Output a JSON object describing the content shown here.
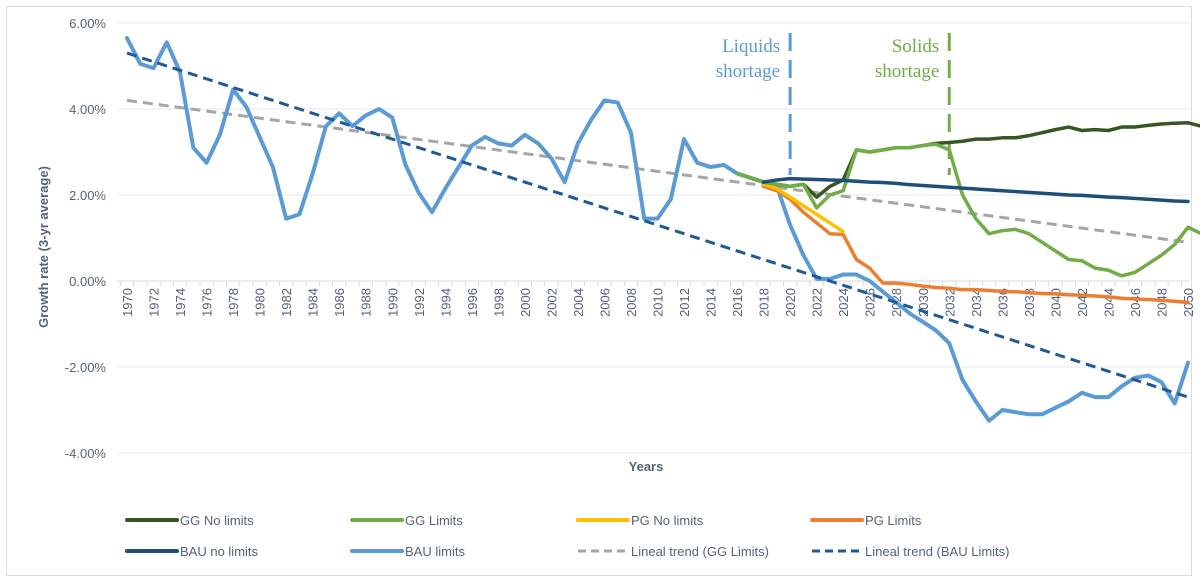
{
  "chart_data": {
    "type": "line",
    "title": "",
    "xlabel": "Years",
    "ylabel": "Growth rate (3-yr average)",
    "ylim": [
      -4,
      6
    ],
    "xlim": [
      1970,
      2050
    ],
    "grid": true,
    "legend_position": "bottom",
    "y_ticks": [
      "6.00%",
      "4.00%",
      "2.00%",
      "0.00%",
      "-2.00%",
      "-4.00%"
    ],
    "y_tick_values": [
      6,
      4,
      2,
      0,
      -2,
      -4
    ],
    "x_tick_step": 2,
    "annotations": [
      {
        "text_lines": [
          "Liquids",
          "shortage"
        ],
        "x": 2020,
        "color": "#5b9bd5"
      },
      {
        "text_lines": [
          "Solids",
          "shortage"
        ],
        "x": 2032,
        "color": "#70ad47"
      }
    ],
    "series": [
      {
        "name": "BAU limits",
        "color": "#5b9bd5",
        "style": "solid",
        "x_start": 1970,
        "values": [
          5.65,
          5.05,
          4.95,
          5.55,
          4.85,
          3.1,
          2.75,
          3.4,
          4.45,
          4.05,
          3.35,
          2.65,
          1.45,
          1.55,
          2.5,
          3.6,
          3.9,
          3.6,
          3.85,
          4.0,
          3.8,
          2.7,
          2.05,
          1.6,
          2.15,
          2.65,
          3.15,
          3.35,
          3.2,
          3.15,
          3.4,
          3.2,
          2.85,
          2.3,
          3.2,
          3.75,
          4.2,
          4.15,
          3.45,
          1.45,
          1.45,
          1.9,
          3.3,
          2.75,
          2.65,
          2.7,
          2.5,
          2.4,
          2.3,
          2.2,
          1.3,
          0.6,
          0.05,
          0.05,
          0.15,
          0.15,
          0.0,
          -0.25,
          -0.5,
          -0.75,
          -0.95,
          -1.15,
          -1.45,
          -2.3,
          -2.8,
          -3.25,
          -3.0,
          -3.05,
          -3.1,
          -3.1,
          -2.95,
          -2.8,
          -2.6,
          -2.7,
          -2.7,
          -2.45,
          -2.25,
          -2.2,
          -2.35,
          -2.85,
          -1.9
        ]
      },
      {
        "name": "BAU no limits",
        "color": "#1f4e79",
        "style": "solid",
        "x_start": 2018,
        "values": [
          2.3,
          2.35,
          2.38,
          2.37,
          2.36,
          2.35,
          2.34,
          2.32,
          2.3,
          2.29,
          2.27,
          2.24,
          2.22,
          2.2,
          2.18,
          2.16,
          2.14,
          2.12,
          2.1,
          2.08,
          2.06,
          2.04,
          2.02,
          2.0,
          1.99,
          1.97,
          1.95,
          1.94,
          1.92,
          1.9,
          1.88,
          1.86,
          1.85
        ]
      },
      {
        "name": "GG No limits",
        "color": "#375623",
        "style": "solid",
        "x_start": 2016,
        "values": [
          2.5,
          2.4,
          2.3,
          2.25,
          2.2,
          2.25,
          1.95,
          2.2,
          2.35,
          3.05,
          3.0,
          3.05,
          3.1,
          3.1,
          3.15,
          3.2,
          3.22,
          3.25,
          3.3,
          3.3,
          3.33,
          3.33,
          3.38,
          3.45,
          3.52,
          3.58,
          3.5,
          3.52,
          3.5,
          3.58,
          3.58,
          3.62,
          3.65,
          3.67,
          3.68,
          3.6
        ]
      },
      {
        "name": "GG Limits",
        "color": "#70ad47",
        "style": "solid",
        "x_start": 2016,
        "values": [
          2.5,
          2.4,
          2.3,
          2.25,
          2.2,
          2.25,
          1.7,
          2.0,
          2.1,
          3.05,
          3.0,
          3.05,
          3.1,
          3.1,
          3.15,
          3.18,
          3.05,
          2.0,
          1.45,
          1.1,
          1.17,
          1.2,
          1.1,
          0.9,
          0.7,
          0.5,
          0.47,
          0.3,
          0.25,
          0.12,
          0.2,
          0.4,
          0.6,
          0.85,
          1.25,
          1.1
        ]
      },
      {
        "name": "PG No limits",
        "color": "#ffc000",
        "style": "solid",
        "x_start": 2018,
        "values": [
          2.25,
          2.15,
          1.95,
          1.75,
          1.55,
          1.35,
          1.15
        ]
      },
      {
        "name": "PG Limits",
        "color": "#ed7d31",
        "style": "solid",
        "x_start": 2018,
        "values": [
          2.2,
          2.1,
          1.9,
          1.6,
          1.35,
          1.1,
          1.08,
          0.5,
          0.3,
          -0.05,
          -0.05,
          -0.08,
          -0.12,
          -0.15,
          -0.17,
          -0.2,
          -0.2,
          -0.22,
          -0.24,
          -0.25,
          -0.27,
          -0.29,
          -0.3,
          -0.32,
          -0.33,
          -0.35,
          -0.37,
          -0.4,
          -0.42,
          -0.43,
          -0.45,
          -0.47,
          -0.5
        ]
      },
      {
        "name": "Lineal trend (GG Limits)",
        "color": "#a5a5a5",
        "style": "dashed",
        "x_start": 1970,
        "line": {
          "x": [
            1970,
            2050
          ],
          "y": [
            4.2,
            0.9
          ]
        }
      },
      {
        "name": "Lineal trend (BAU Limits)",
        "color": "#1f5a96",
        "style": "dashed",
        "x_start": 1970,
        "line": {
          "x": [
            1970,
            2050
          ],
          "y": [
            5.3,
            -2.7
          ]
        }
      }
    ],
    "legend": [
      {
        "label": "GG No limits",
        "color": "#375623",
        "style": "solid"
      },
      {
        "label": "GG Limits",
        "color": "#70ad47",
        "style": "solid"
      },
      {
        "label": "PG No limits",
        "color": "#ffc000",
        "style": "solid"
      },
      {
        "label": "PG Limits",
        "color": "#ed7d31",
        "style": "solid"
      },
      {
        "label": "BAU no limits",
        "color": "#1f4e79",
        "style": "solid"
      },
      {
        "label": "BAU limits",
        "color": "#5b9bd5",
        "style": "solid"
      },
      {
        "label": "Lineal trend (GG Limits)",
        "color": "#a5a5a5",
        "style": "dashed"
      },
      {
        "label": "Lineal trend (BAU Limits)",
        "color": "#1f5a96",
        "style": "dashed"
      }
    ]
  }
}
